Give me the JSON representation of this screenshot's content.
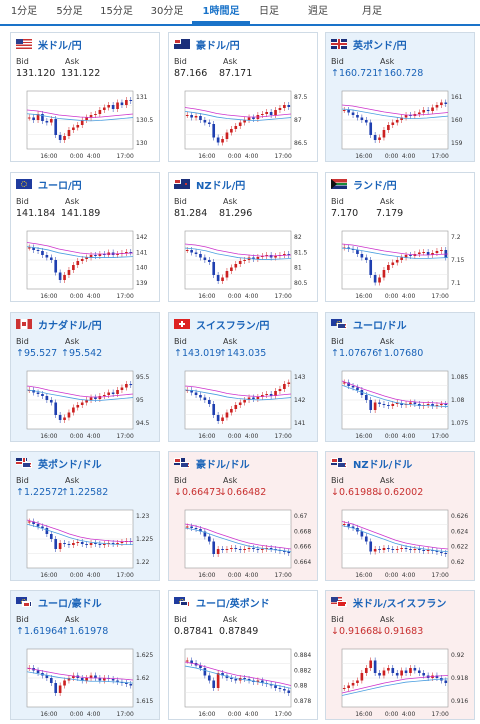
{
  "tabs": [
    {
      "label": "1分足"
    },
    {
      "label": "5分足"
    },
    {
      "label": "15分足"
    },
    {
      "label": "30分足"
    },
    {
      "label": "1時間足",
      "active": true
    },
    {
      "label": "日足"
    },
    {
      "label": "週足"
    },
    {
      "label": "月足"
    }
  ],
  "labels": {
    "bid": "Bid",
    "ask": "Ask"
  },
  "x_ticks": [
    "16:00",
    "0:00",
    "4:00",
    "17:00"
  ],
  "colors": {
    "up_candle": "#cc2020",
    "down_candle": "#1f3fb0",
    "ma_line": "#cc33cc",
    "ma2_line": "#4b9fe0"
  },
  "cards": [
    {
      "pair": "米ドル/円",
      "flag": "us",
      "trend": "flat",
      "bid": "131.120",
      "ask": "131.122",
      "y_ticks": [
        "131",
        "130.5",
        "130"
      ],
      "series": [
        0.55,
        0.5,
        0.62,
        0.48,
        0.45,
        0.52,
        0.2,
        0.1,
        0.18,
        0.3,
        0.35,
        0.4,
        0.5,
        0.55,
        0.6,
        0.62,
        0.7,
        0.75,
        0.8,
        0.72,
        0.85,
        0.8,
        0.9,
        0.88
      ],
      "ma": [
        0.7,
        0.68,
        0.64,
        0.6,
        0.58,
        0.56,
        0.55,
        0.56,
        0.58,
        0.6,
        0.62
      ]
    },
    {
      "pair": "豪ドル/円",
      "flag": "au",
      "trend": "flat",
      "bid": "87.166",
      "ask": "87.171",
      "y_ticks": [
        "87.5",
        "87",
        "86.5"
      ],
      "series": [
        0.6,
        0.55,
        0.58,
        0.5,
        0.45,
        0.42,
        0.15,
        0.05,
        0.12,
        0.25,
        0.32,
        0.38,
        0.45,
        0.5,
        0.55,
        0.52,
        0.6,
        0.62,
        0.66,
        0.6,
        0.7,
        0.74,
        0.8,
        0.76
      ],
      "ma": [
        0.75,
        0.72,
        0.68,
        0.63,
        0.6,
        0.58,
        0.56,
        0.56,
        0.58,
        0.6,
        0.62
      ]
    },
    {
      "pair": "英ポンド/円",
      "flag": "gb",
      "trend": "up",
      "bid": "↑160.721",
      "ask": "↑160.728",
      "y_ticks": [
        "161",
        "160",
        "159"
      ],
      "series": [
        0.7,
        0.65,
        0.6,
        0.55,
        0.5,
        0.45,
        0.2,
        0.1,
        0.15,
        0.3,
        0.4,
        0.45,
        0.5,
        0.55,
        0.6,
        0.58,
        0.62,
        0.65,
        0.7,
        0.68,
        0.75,
        0.8,
        0.85,
        0.82
      ],
      "ma": [
        0.8,
        0.78,
        0.74,
        0.7,
        0.66,
        0.63,
        0.6,
        0.6,
        0.61,
        0.63,
        0.65
      ]
    },
    {
      "pair": "ユーロ/円",
      "flag": "eu",
      "trend": "flat",
      "bid": "141.184",
      "ask": "141.189",
      "y_ticks": [
        "142",
        "141",
        "140",
        "139"
      ],
      "series": [
        0.75,
        0.7,
        0.68,
        0.6,
        0.55,
        0.5,
        0.25,
        0.1,
        0.2,
        0.3,
        0.4,
        0.48,
        0.52,
        0.55,
        0.6,
        0.58,
        0.62,
        0.6,
        0.65,
        0.6,
        0.62,
        0.64,
        0.66,
        0.65
      ],
      "ma": [
        0.85,
        0.82,
        0.78,
        0.72,
        0.68,
        0.64,
        0.62,
        0.62,
        0.62,
        0.63,
        0.64
      ]
    },
    {
      "pair": "NZドル/円",
      "flag": "nz",
      "trend": "flat",
      "bid": "81.284",
      "ask": "81.296",
      "y_ticks": [
        "82",
        "81.5",
        "81",
        "80.5"
      ],
      "series": [
        0.7,
        0.65,
        0.62,
        0.55,
        0.5,
        0.46,
        0.2,
        0.08,
        0.15,
        0.28,
        0.35,
        0.42,
        0.48,
        0.5,
        0.55,
        0.52,
        0.56,
        0.58,
        0.6,
        0.55,
        0.58,
        0.6,
        0.62,
        0.6
      ],
      "ma": [
        0.82,
        0.8,
        0.76,
        0.7,
        0.66,
        0.62,
        0.6,
        0.58,
        0.58,
        0.59,
        0.6
      ]
    },
    {
      "pair": "ランド/円",
      "flag": "za",
      "trend": "flat",
      "bid": "7.170",
      "ask": "7.179",
      "y_ticks": [
        "7.2",
        "7.15",
        "7.1"
      ],
      "series": [
        0.75,
        0.72,
        0.7,
        0.62,
        0.55,
        0.5,
        0.2,
        0.05,
        0.15,
        0.3,
        0.4,
        0.45,
        0.5,
        0.55,
        0.6,
        0.58,
        0.62,
        0.65,
        0.66,
        0.6,
        0.64,
        0.68,
        0.7,
        0.55
      ],
      "ma": [
        0.82,
        0.8,
        0.76,
        0.72,
        0.68,
        0.65,
        0.62,
        0.6,
        0.6,
        0.61,
        0.62
      ]
    },
    {
      "pair": "カナダドル/円",
      "flag": "ca",
      "trend": "up",
      "bid": "↑95.527",
      "ask": "↑95.542",
      "y_ticks": [
        "95.5",
        "95",
        "94.5"
      ],
      "series": [
        0.7,
        0.65,
        0.62,
        0.58,
        0.5,
        0.45,
        0.2,
        0.1,
        0.15,
        0.25,
        0.35,
        0.4,
        0.45,
        0.5,
        0.55,
        0.52,
        0.58,
        0.6,
        0.65,
        0.62,
        0.7,
        0.75,
        0.82,
        0.8
      ],
      "ma": [
        0.78,
        0.75,
        0.7,
        0.66,
        0.62,
        0.58,
        0.56,
        0.56,
        0.58,
        0.6,
        0.62
      ]
    },
    {
      "pair": "スイスフラン/円",
      "flag": "ch",
      "trend": "up",
      "bid": "↑143.019",
      "ask": "↑143.035",
      "y_ticks": [
        "143",
        "142",
        "141"
      ],
      "series": [
        0.7,
        0.65,
        0.6,
        0.55,
        0.5,
        0.42,
        0.2,
        0.08,
        0.15,
        0.25,
        0.32,
        0.4,
        0.45,
        0.5,
        0.55,
        0.52,
        0.56,
        0.6,
        0.62,
        0.58,
        0.68,
        0.72,
        0.82,
        0.85
      ],
      "ma": [
        0.78,
        0.76,
        0.72,
        0.68,
        0.63,
        0.6,
        0.58,
        0.57,
        0.58,
        0.6,
        0.62
      ]
    },
    {
      "pair": "ユーロ/ドル",
      "flag": "eu-us",
      "trend": "up",
      "bid": "↑1.07676",
      "ask": "↑1.07680",
      "y_ticks": [
        "1.085",
        "1.08",
        "1.075"
      ],
      "series": [
        0.85,
        0.78,
        0.75,
        0.7,
        0.6,
        0.5,
        0.3,
        0.45,
        0.42,
        0.4,
        0.38,
        0.42,
        0.44,
        0.4,
        0.42,
        0.45,
        0.42,
        0.38,
        0.4,
        0.42,
        0.38,
        0.4,
        0.42,
        0.4
      ],
      "ma": [
        0.88,
        0.8,
        0.72,
        0.65,
        0.58,
        0.52,
        0.48,
        0.46,
        0.45,
        0.44,
        0.43
      ]
    },
    {
      "pair": "英ポンド/ドル",
      "flag": "gb-us",
      "trend": "up",
      "bid": "↑1.22572",
      "ask": "↑1.22582",
      "y_ticks": [
        "1.23",
        "1.225",
        "1.22"
      ],
      "series": [
        0.85,
        0.8,
        0.75,
        0.72,
        0.6,
        0.5,
        0.3,
        0.42,
        0.4,
        0.38,
        0.42,
        0.44,
        0.4,
        0.38,
        0.42,
        0.4,
        0.38,
        0.4,
        0.42,
        0.4,
        0.42,
        0.44,
        0.46,
        0.45
      ],
      "ma": [
        0.88,
        0.82,
        0.75,
        0.68,
        0.6,
        0.54,
        0.5,
        0.48,
        0.46,
        0.45,
        0.45
      ]
    },
    {
      "pair": "豪ドル/ドル",
      "flag": "au-us",
      "trend": "down",
      "bid": "↓0.66473",
      "ask": "↓0.66482",
      "y_ticks": [
        "0.67",
        "0.668",
        "0.666",
        "0.664"
      ],
      "series": [
        0.75,
        0.72,
        0.7,
        0.65,
        0.55,
        0.45,
        0.2,
        0.3,
        0.28,
        0.3,
        0.32,
        0.3,
        0.28,
        0.3,
        0.32,
        0.3,
        0.28,
        0.3,
        0.32,
        0.3,
        0.28,
        0.26,
        0.25,
        0.22
      ],
      "ma": [
        0.8,
        0.76,
        0.7,
        0.62,
        0.55,
        0.48,
        0.42,
        0.38,
        0.35,
        0.33,
        0.3
      ]
    },
    {
      "pair": "NZドル/ドル",
      "flag": "nz-us",
      "trend": "down",
      "bid": "↓0.61988",
      "ask": "↓0.62002",
      "y_ticks": [
        "0.626",
        "0.624",
        "0.622",
        "0.62"
      ],
      "series": [
        0.8,
        0.75,
        0.72,
        0.65,
        0.55,
        0.45,
        0.25,
        0.3,
        0.28,
        0.32,
        0.3,
        0.28,
        0.3,
        0.32,
        0.3,
        0.28,
        0.3,
        0.28,
        0.26,
        0.28,
        0.26,
        0.24,
        0.22,
        0.2
      ],
      "ma": [
        0.85,
        0.8,
        0.72,
        0.64,
        0.56,
        0.48,
        0.42,
        0.38,
        0.35,
        0.32,
        0.3
      ]
    },
    {
      "pair": "ユーロ/豪ドル",
      "flag": "eu-au",
      "trend": "up",
      "bid": "↑1.61964",
      "ask": "↑1.61978",
      "y_ticks": [
        "1.625",
        "1.62",
        "1.615"
      ],
      "series": [
        0.7,
        0.65,
        0.6,
        0.55,
        0.5,
        0.4,
        0.2,
        0.35,
        0.45,
        0.5,
        0.55,
        0.5,
        0.45,
        0.5,
        0.55,
        0.5,
        0.45,
        0.5,
        0.48,
        0.45,
        0.42,
        0.4,
        0.38,
        0.35
      ],
      "ma": [
        0.7,
        0.66,
        0.62,
        0.58,
        0.55,
        0.52,
        0.5,
        0.5,
        0.49,
        0.48,
        0.46
      ]
    },
    {
      "pair": "ユーロ/英ポンド",
      "flag": "eu-gb",
      "trend": "flat",
      "bid": "0.87841",
      "ask": "0.87849",
      "y_ticks": [
        "0.884",
        "0.882",
        "0.88",
        "0.878"
      ],
      "series": [
        0.85,
        0.8,
        0.75,
        0.7,
        0.55,
        0.45,
        0.3,
        0.6,
        0.55,
        0.5,
        0.48,
        0.45,
        0.5,
        0.48,
        0.45,
        0.42,
        0.45,
        0.4,
        0.38,
        0.35,
        0.3,
        0.28,
        0.25,
        0.2
      ],
      "ma": [
        0.82,
        0.78,
        0.72,
        0.66,
        0.6,
        0.55,
        0.52,
        0.48,
        0.44,
        0.4,
        0.35
      ]
    },
    {
      "pair": "米ドル/スイスフラン",
      "flag": "us-ch",
      "trend": "down",
      "bid": "↓0.91668",
      "ask": "↓0.91683",
      "y_ticks": [
        "0.92",
        "0.918",
        "0.916"
      ],
      "series": [
        0.3,
        0.35,
        0.4,
        0.45,
        0.6,
        0.7,
        0.85,
        0.6,
        0.55,
        0.65,
        0.7,
        0.6,
        0.55,
        0.65,
        0.6,
        0.7,
        0.65,
        0.6,
        0.55,
        0.5,
        0.55,
        0.5,
        0.45,
        0.4
      ],
      "ma": [
        0.2,
        0.25,
        0.3,
        0.35,
        0.4,
        0.44,
        0.48,
        0.5,
        0.52,
        0.54,
        0.55
      ]
    }
  ]
}
